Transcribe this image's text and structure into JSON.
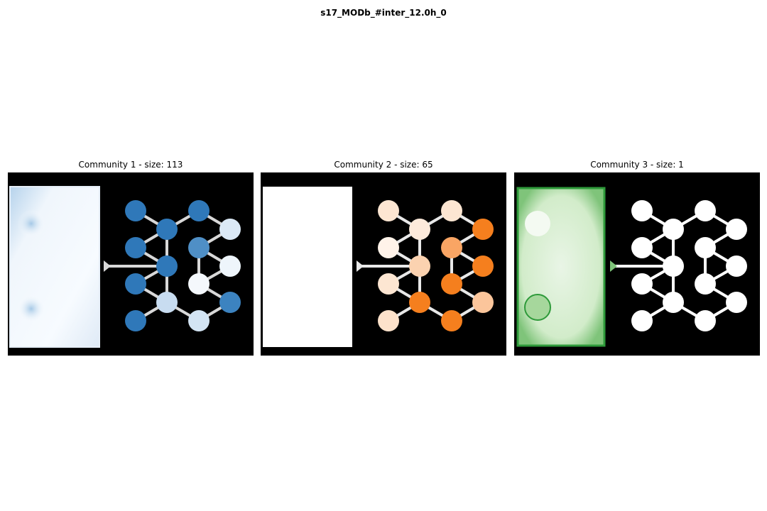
{
  "figure": {
    "title": "s17_MODb_#inter_12.0h_0"
  },
  "chart_data": [
    {
      "type": "heatmap",
      "title": "Community 1 - size: 113",
      "community": 1,
      "size": 113,
      "colormap": "Blues",
      "color": "#2f78b9"
    },
    {
      "type": "heatmap",
      "title": "Community 2 - size: 65",
      "community": 2,
      "size": 65,
      "colormap": "Oranges",
      "color": "#f57f1e"
    },
    {
      "type": "heatmap",
      "title": "Community 3 - size: 1",
      "community": 3,
      "size": 1,
      "colormap": "Greens",
      "color": "#2e9a3a"
    }
  ]
}
